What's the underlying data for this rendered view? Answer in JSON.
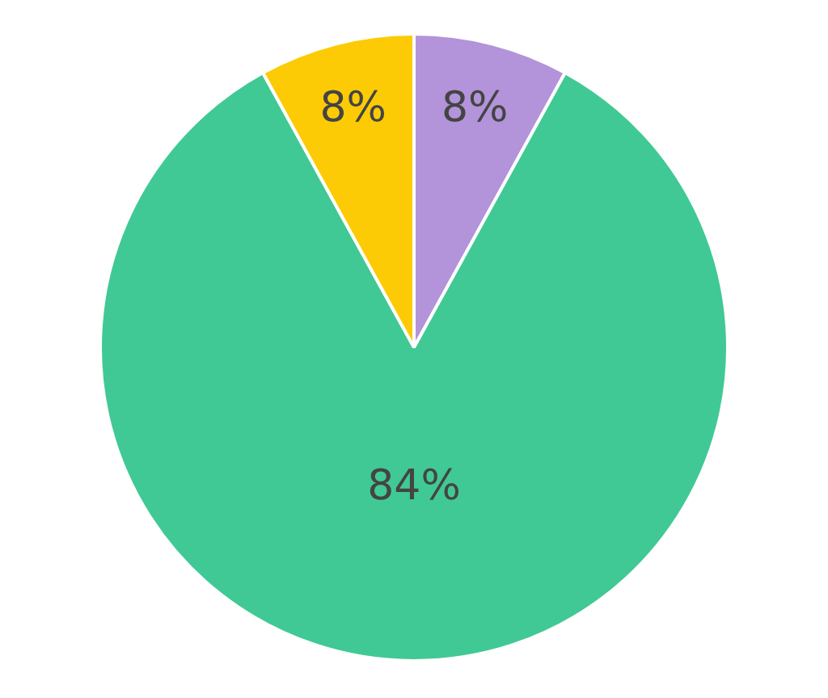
{
  "chart_data": {
    "type": "pie",
    "categories": [
      null,
      null,
      null
    ],
    "values": [
      8,
      84,
      8
    ],
    "colors": [
      "#b393d9",
      "#40c995",
      "#fccb05"
    ],
    "value_labels": [
      "8%",
      "84%",
      "8%"
    ],
    "legend": false
  }
}
